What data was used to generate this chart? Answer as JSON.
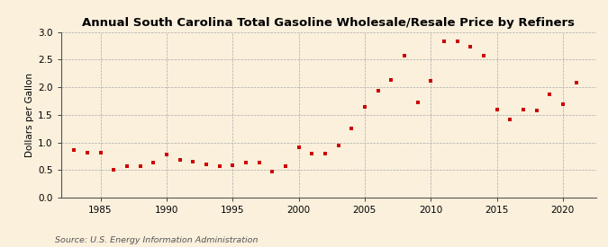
{
  "title": "Annual South Carolina Total Gasoline Wholesale/Resale Price by Refiners",
  "ylabel": "Dollars per Gallon",
  "source": "Source: U.S. Energy Information Administration",
  "background_color": "#FAF0DC",
  "marker_color": "#CC0000",
  "xlim": [
    1982.0,
    2022.5
  ],
  "ylim": [
    0.0,
    3.0
  ],
  "yticks": [
    0.0,
    0.5,
    1.0,
    1.5,
    2.0,
    2.5,
    3.0
  ],
  "xticks": [
    1985,
    1990,
    1995,
    2000,
    2005,
    2010,
    2015,
    2020
  ],
  "years": [
    1983,
    1984,
    1985,
    1986,
    1987,
    1988,
    1989,
    1990,
    1991,
    1992,
    1993,
    1994,
    1995,
    1996,
    1997,
    1998,
    1999,
    2000,
    2001,
    2002,
    2003,
    2004,
    2005,
    2006,
    2007,
    2008,
    2009,
    2010,
    2011,
    2012,
    2013,
    2014,
    2015,
    2016,
    2017,
    2018,
    2019,
    2020,
    2021
  ],
  "values": [
    0.86,
    0.82,
    0.81,
    0.5,
    0.57,
    0.57,
    0.63,
    0.78,
    0.68,
    0.65,
    0.6,
    0.57,
    0.58,
    0.64,
    0.63,
    0.48,
    0.57,
    0.91,
    0.8,
    0.79,
    0.94,
    1.26,
    1.65,
    1.94,
    2.14,
    2.58,
    1.73,
    2.12,
    2.83,
    2.84,
    2.74,
    2.57,
    1.59,
    1.41,
    1.6,
    1.58,
    1.88,
    1.7,
    2.08
  ],
  "title_fontsize": 9.5,
  "label_fontsize": 7.5,
  "tick_fontsize": 7.5,
  "source_fontsize": 6.8
}
